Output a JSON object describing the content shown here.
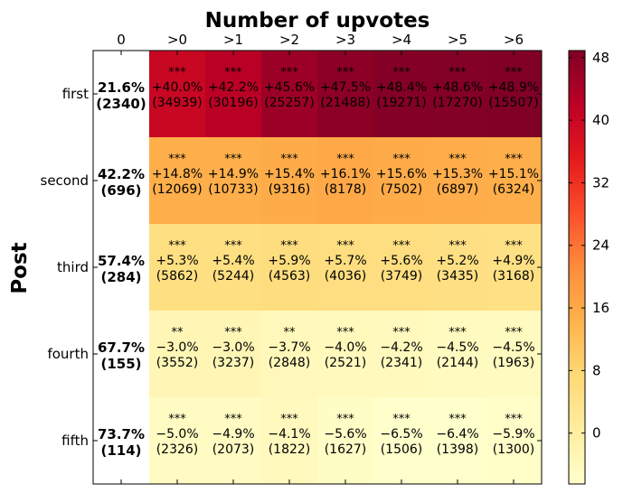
{
  "chart_data": {
    "type": "heatmap",
    "title": "Number of upvotes",
    "ylabel": "Post",
    "x_categories": [
      "0",
      ">0",
      ">1",
      ">2",
      ">3",
      ">4",
      ">5",
      ">6"
    ],
    "y_categories": [
      "first",
      "second",
      "third",
      "fourth",
      "fifth"
    ],
    "baseline_column": [
      {
        "pct": "21.6%",
        "count": "(2340)"
      },
      {
        "pct": "42.2%",
        "count": "(696)"
      },
      {
        "pct": "57.4%",
        "count": "(284)"
      },
      {
        "pct": "67.7%",
        "count": "(155)"
      },
      {
        "pct": "73.7%",
        "count": "(114)"
      }
    ],
    "cells": [
      [
        {
          "value": 40.0,
          "sig": "***",
          "label": "+40.0%",
          "count": "(34939)"
        },
        {
          "value": 42.2,
          "sig": "***",
          "label": "+42.2%",
          "count": "(30196)"
        },
        {
          "value": 45.6,
          "sig": "***",
          "label": "+45.6%",
          "count": "(25257)"
        },
        {
          "value": 47.5,
          "sig": "***",
          "label": "+47.5%",
          "count": "(21488)"
        },
        {
          "value": 48.4,
          "sig": "***",
          "label": "+48.4%",
          "count": "(19271)"
        },
        {
          "value": 48.6,
          "sig": "***",
          "label": "+48.6%",
          "count": "(17270)"
        },
        {
          "value": 48.9,
          "sig": "***",
          "label": "+48.9%",
          "count": "(15507)"
        }
      ],
      [
        {
          "value": 14.8,
          "sig": "***",
          "label": "+14.8%",
          "count": "(12069)"
        },
        {
          "value": 14.9,
          "sig": "***",
          "label": "+14.9%",
          "count": "(10733)"
        },
        {
          "value": 15.4,
          "sig": "***",
          "label": "+15.4%",
          "count": "(9316)"
        },
        {
          "value": 16.1,
          "sig": "***",
          "label": "+16.1%",
          "count": "(8178)"
        },
        {
          "value": 15.6,
          "sig": "***",
          "label": "+15.6%",
          "count": "(7502)"
        },
        {
          "value": 15.3,
          "sig": "***",
          "label": "+15.3%",
          "count": "(6897)"
        },
        {
          "value": 15.1,
          "sig": "***",
          "label": "+15.1%",
          "count": "(6324)"
        }
      ],
      [
        {
          "value": 5.3,
          "sig": "***",
          "label": "+5.3%",
          "count": "(5862)"
        },
        {
          "value": 5.4,
          "sig": "***",
          "label": "+5.4%",
          "count": "(5244)"
        },
        {
          "value": 5.9,
          "sig": "***",
          "label": "+5.9%",
          "count": "(4563)"
        },
        {
          "value": 5.7,
          "sig": "***",
          "label": "+5.7%",
          "count": "(4036)"
        },
        {
          "value": 5.6,
          "sig": "***",
          "label": "+5.6%",
          "count": "(3749)"
        },
        {
          "value": 5.2,
          "sig": "***",
          "label": "+5.2%",
          "count": "(3435)"
        },
        {
          "value": 4.9,
          "sig": "***",
          "label": "+4.9%",
          "count": "(3168)"
        }
      ],
      [
        {
          "value": -3.0,
          "sig": "**",
          "label": "−3.0%",
          "count": "(3552)"
        },
        {
          "value": -3.0,
          "sig": "***",
          "label": "−3.0%",
          "count": "(3237)"
        },
        {
          "value": -3.7,
          "sig": "**",
          "label": "−3.7%",
          "count": "(2848)"
        },
        {
          "value": -4.0,
          "sig": "***",
          "label": "−4.0%",
          "count": "(2521)"
        },
        {
          "value": -4.2,
          "sig": "***",
          "label": "−4.2%",
          "count": "(2341)"
        },
        {
          "value": -4.5,
          "sig": "***",
          "label": "−4.5%",
          "count": "(2144)"
        },
        {
          "value": -4.5,
          "sig": "***",
          "label": "−4.5%",
          "count": "(1963)"
        }
      ],
      [
        {
          "value": -5.0,
          "sig": "***",
          "label": "−5.0%",
          "count": "(2326)"
        },
        {
          "value": -4.9,
          "sig": "***",
          "label": "−4.9%",
          "count": "(2073)"
        },
        {
          "value": -4.1,
          "sig": "***",
          "label": "−4.1%",
          "count": "(1822)"
        },
        {
          "value": -5.6,
          "sig": "***",
          "label": "−5.6%",
          "count": "(1627)"
        },
        {
          "value": -6.5,
          "sig": "***",
          "label": "−6.5%",
          "count": "(1506)"
        },
        {
          "value": -6.4,
          "sig": "***",
          "label": "−6.4%",
          "count": "(1398)"
        },
        {
          "value": -5.9,
          "sig": "***",
          "label": "−5.9%",
          "count": "(1300)"
        }
      ]
    ],
    "colorbar": {
      "colormap": "YlOrRd",
      "range": [
        -6.5,
        48.9
      ],
      "ticks": [
        0,
        8,
        16,
        24,
        32,
        40,
        48
      ],
      "tick_labels": [
        "0",
        "8",
        "16",
        "24",
        "32",
        "40",
        "48"
      ]
    },
    "colormap_stops": [
      "#ffffcc",
      "#ffeda0",
      "#fed976",
      "#feb24c",
      "#fd8d3c",
      "#fc4e2a",
      "#e31a1c",
      "#bd0026",
      "#800026"
    ]
  }
}
